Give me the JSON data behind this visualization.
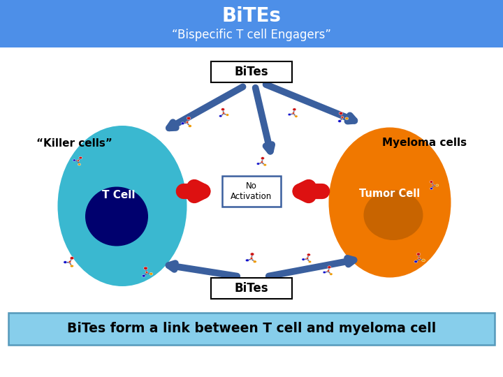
{
  "header_bg_color": "#4d8fe8",
  "header_title": "BiTEs",
  "header_subtitle": "“Bispecific T cell Engagers”",
  "header_title_color": "#ffffff",
  "header_subtitle_color": "#ffffff",
  "footer_bg_color": "#87ceeb",
  "footer_border_color": "#5599bb",
  "footer_text": "BiTes form a link between T cell and myeloma cell",
  "footer_text_color": "#000000",
  "main_bg_color": "#ffffff",
  "t_cell_outer_color": "#3ab8d0",
  "t_cell_inner_color": "#00006e",
  "t_cell_label": "T Cell",
  "tumor_cell_outer_color": "#f07800",
  "tumor_cell_inner_color": "#c86400",
  "tumor_cell_label": "Tumor Cell",
  "killer_cells_label": "“Killer cells”",
  "myeloma_cells_label": "Myeloma cells",
  "bites_top_label": "BiTes",
  "bites_bottom_label": "BiTes",
  "no_activation_label": "No\nActivation",
  "arrow_color": "#dd1111",
  "dashed_arrow_color": "#3a5f9e",
  "no_act_border": "#3a5f9e"
}
